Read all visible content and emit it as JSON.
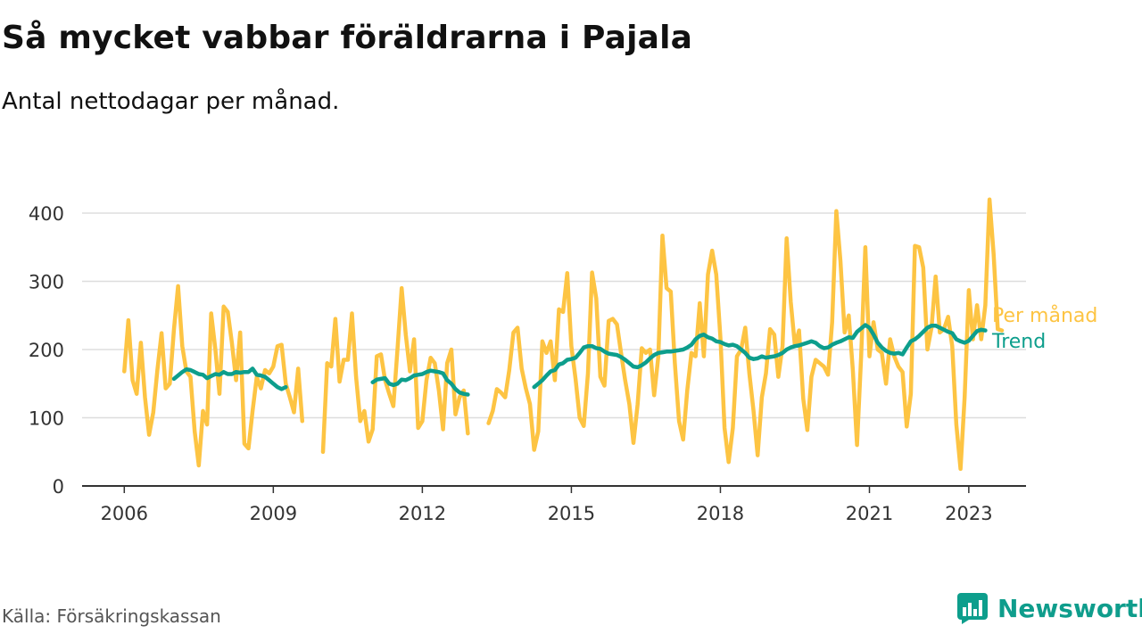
{
  "title": "Så mycket vabbar föräldrarna i Pajala",
  "subtitle": "Antal nettodagar per månad.",
  "source": "Källa: Försäkringskassan",
  "brand": {
    "name": "Newsworthy",
    "icon": "newsworthy-logo-icon"
  },
  "colors": {
    "monthly": "#FDC443",
    "trend": "#0D9E8C",
    "grid": "#DDDDDD",
    "axis": "#333333"
  },
  "chart_data": {
    "type": "line",
    "x_unit": "month",
    "ylim": [
      0,
      400
    ],
    "yticks": [
      0,
      100,
      200,
      300,
      400
    ],
    "xtick_labels": [
      "2006",
      "2009",
      "2012",
      "2015",
      "2018",
      "2021",
      "2023"
    ],
    "grid": true,
    "legend_placement": "right, at line ends",
    "series": [
      {
        "name": "Per månad",
        "start": "2006-01",
        "values": [
          168,
          243,
          155,
          135,
          210,
          130,
          75,
          108,
          170,
          224,
          143,
          150,
          230,
          293,
          205,
          168,
          160,
          80,
          30,
          110,
          90,
          253,
          200,
          135,
          263,
          255,
          210,
          155,
          225,
          62,
          55,
          110,
          160,
          143,
          170,
          165,
          175,
          205,
          207,
          150,
          130,
          108,
          172,
          95,
          null,
          null,
          null,
          null,
          50,
          180,
          175,
          245,
          153,
          185,
          185,
          253,
          160,
          95,
          110,
          65,
          83,
          190,
          193,
          155,
          135,
          117,
          200,
          290,
          222,
          168,
          215,
          85,
          95,
          155,
          188,
          180,
          140,
          83,
          180,
          200,
          105,
          130,
          140,
          77,
          null,
          null,
          null,
          null,
          92,
          110,
          142,
          137,
          130,
          170,
          225,
          232,
          172,
          143,
          120,
          53,
          80,
          212,
          195,
          212,
          155,
          259,
          255,
          312,
          205,
          157,
          100,
          88,
          165,
          313,
          275,
          160,
          147,
          242,
          245,
          237,
          195,
          155,
          120,
          63,
          120,
          202,
          195,
          200,
          133,
          190,
          367,
          290,
          285,
          180,
          95,
          68,
          140,
          195,
          190,
          268,
          190,
          310,
          345,
          310,
          217,
          85,
          35,
          85,
          190,
          200,
          232,
          165,
          110,
          45,
          130,
          165,
          230,
          222,
          160,
          205,
          363,
          270,
          205,
          228,
          128,
          82,
          160,
          185,
          180,
          175,
          163,
          240,
          403,
          330,
          225,
          250,
          170,
          60,
          190,
          350,
          190,
          240,
          200,
          195,
          150,
          215,
          190,
          175,
          167,
          87,
          135,
          352,
          350,
          320,
          200,
          232,
          307,
          225,
          230,
          248,
          205,
          90,
          25,
          130,
          287,
          215,
          265,
          215,
          265,
          420,
          340,
          230,
          228
        ]
      },
      {
        "name": "Trend",
        "start": "2006-01",
        "values": [
          null,
          null,
          null,
          null,
          null,
          null,
          null,
          null,
          null,
          null,
          null,
          null,
          157,
          162,
          167,
          171,
          170,
          167,
          164,
          163,
          158,
          161,
          164,
          163,
          167,
          164,
          164,
          167,
          166,
          167,
          167,
          172,
          163,
          162,
          160,
          155,
          150,
          145,
          142,
          145,
          null,
          null,
          null,
          null,
          null,
          null,
          null,
          null,
          null,
          null,
          null,
          null,
          null,
          null,
          null,
          null,
          null,
          null,
          null,
          null,
          152,
          156,
          157,
          158,
          150,
          148,
          150,
          156,
          155,
          158,
          162,
          163,
          164,
          167,
          169,
          168,
          167,
          165,
          155,
          150,
          142,
          137,
          135,
          134,
          null,
          null,
          null,
          null,
          null,
          null,
          null,
          null,
          null,
          null,
          null,
          null,
          null,
          null,
          null,
          145,
          150,
          155,
          162,
          168,
          170,
          178,
          180,
          185,
          186,
          188,
          195,
          203,
          205,
          205,
          202,
          201,
          197,
          194,
          193,
          192,
          189,
          185,
          180,
          175,
          174,
          177,
          181,
          187,
          192,
          195,
          196,
          197,
          197,
          198,
          199,
          200,
          203,
          207,
          215,
          220,
          222,
          218,
          216,
          212,
          211,
          208,
          206,
          207,
          205,
          200,
          195,
          188,
          186,
          187,
          190,
          188,
          189,
          190,
          192,
          195,
          200,
          203,
          205,
          206,
          208,
          210,
          212,
          210,
          205,
          202,
          203,
          207,
          210,
          212,
          215,
          218,
          217,
          226,
          231,
          236,
          232,
          222,
          210,
          203,
          198,
          195,
          194,
          195,
          193,
          203,
          212,
          215,
          220,
          226,
          232,
          235,
          235,
          232,
          229,
          226,
          224,
          215,
          212,
          210,
          213,
          220,
          227,
          229,
          228
        ]
      }
    ]
  }
}
